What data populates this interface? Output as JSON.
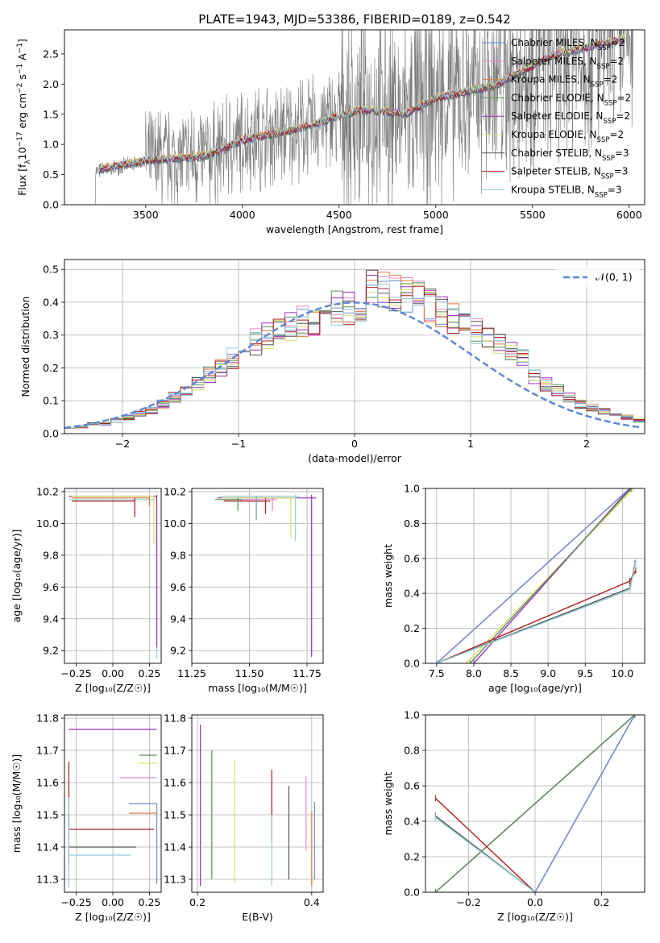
{
  "figure": {
    "title": "PLATE=1943, MJD=53386, FIBERID=0189, z=0.542"
  },
  "series_styles": [
    {
      "name": "Chabrier MILES",
      "nssp": "2",
      "color": "#6a8fd6"
    },
    {
      "name": "Salpeter MILES",
      "nssp": "2",
      "color": "#e58ac9"
    },
    {
      "name": "Kroupa MILES",
      "nssp": "2",
      "color": "#e07b39"
    },
    {
      "name": "Chabrier ELODIE",
      "nssp": "2",
      "color": "#5a8f5a"
    },
    {
      "name": "Salpeter ELODIE",
      "nssp": "2",
      "color": "#a02ec0"
    },
    {
      "name": "Kroupa ELODIE",
      "nssp": "2",
      "color": "#d6e26b"
    },
    {
      "name": "Chabrier STELIB",
      "nssp": "3",
      "color": "#555555"
    },
    {
      "name": "Salpeter STELIB",
      "nssp": "3",
      "color": "#b01c1c"
    },
    {
      "name": "Kroupa STELIB",
      "nssp": "3",
      "color": "#8fd0d6"
    }
  ],
  "chart_data": [
    {
      "id": "spectrum",
      "type": "line",
      "title": "PLATE=1943, MJD=53386, FIBERID=0189, z=0.542",
      "xlabel": "wavelength [Angstrom, rest frame]",
      "ylabel_main": "Flux [f",
      "ylabel_sub": "λ",
      "ylabel_mid": "10",
      "ylabel_sup1": "−17",
      "ylabel_unit": " erg cm",
      "ylabel_sup2": "−2",
      "ylabel_unit2": " s",
      "ylabel_sup3": "−1",
      "ylabel_unit3": " A",
      "ylabel_sup4": "−1",
      "ylabel_end": "]",
      "xlim": [
        3080,
        6080
      ],
      "ylim": [
        0,
        2.9
      ],
      "xticks": [
        3500,
        4000,
        4500,
        5000,
        5500,
        6000
      ],
      "yticks": [
        0.0,
        0.5,
        1.0,
        1.5,
        2.0,
        2.5
      ],
      "data_range": [
        3240,
        6020
      ],
      "model_anchor_x": [
        3240,
        3500,
        3800,
        4000,
        4300,
        4600,
        4850,
        5000,
        5300,
        5600,
        6000
      ],
      "model_anchor_y": [
        0.55,
        0.72,
        0.78,
        1.05,
        1.25,
        1.55,
        1.5,
        1.75,
        1.95,
        2.45,
        2.75
      ],
      "legend_position": "top-right"
    },
    {
      "id": "residual-histogram",
      "type": "histogram",
      "xlabel": "(data-model)/error",
      "ylabel": "Normed distribution",
      "xlim": [
        -2.5,
        2.5
      ],
      "ylim": [
        0,
        0.53
      ],
      "xticks": [
        -2,
        -1,
        0,
        1,
        2
      ],
      "yticks": [
        0.0,
        0.1,
        0.2,
        0.3,
        0.4,
        0.5
      ],
      "bin_width": 0.1,
      "bins_center_values": [
        0.02,
        0.02,
        0.03,
        0.03,
        0.04,
        0.05,
        0.06,
        0.07,
        0.09,
        0.11,
        0.13,
        0.15,
        0.18,
        0.2,
        0.23,
        0.25,
        0.28,
        0.3,
        0.32,
        0.33,
        0.34,
        0.35,
        0.37,
        0.38,
        0.39,
        0.4,
        0.4,
        0.4,
        0.39,
        0.38,
        0.37,
        0.35,
        0.33,
        0.31,
        0.29,
        0.27,
        0.25,
        0.23,
        0.21,
        0.19,
        0.17,
        0.15,
        0.13,
        0.11,
        0.09,
        0.08,
        0.07,
        0.06,
        0.05,
        0.04
      ],
      "gaussian_label": "𝒩(0, 1)",
      "gaussian_color": "#5b86d6",
      "legend_position": "top-right"
    },
    {
      "id": "age-vs-Z",
      "type": "errorbar",
      "xlabel": "Z [log₁₀(Z/Z☉)]",
      "ylabel": "age  [log₁₀(age/yr)]",
      "xlim": [
        -0.33,
        0.33
      ],
      "ylim": [
        9.12,
        10.22
      ],
      "xticks": [
        "-0.25",
        "0.00",
        "0.25"
      ],
      "xtick_vals": [
        -0.25,
        0.0,
        0.25
      ],
      "yticks": [
        9.2,
        9.4,
        9.6,
        9.8,
        10.0,
        10.2
      ],
      "points": [
        {
          "s": 8,
          "x": 0.3,
          "y": 10.15,
          "xerr": [
            0.6,
            0
          ],
          "yerr": [
            1.0,
            0.02
          ]
        },
        {
          "s": 4,
          "x": 0.3,
          "y": 10.17,
          "xerr": [
            0.6,
            0
          ],
          "yerr": [
            0.95,
            0.01
          ]
        },
        {
          "s": 5,
          "x": 0.28,
          "y": 10.17,
          "xerr": [
            0.56,
            0
          ],
          "yerr": [
            0.3,
            0.01
          ]
        },
        {
          "s": 7,
          "x": 0.15,
          "y": 10.14,
          "xerr": [
            0.43,
            0
          ],
          "yerr": [
            0.1,
            0.02
          ]
        },
        {
          "s": 2,
          "x": 0.25,
          "y": 10.16,
          "xerr": [
            0.53,
            0
          ],
          "yerr": [
            0.05,
            0.01
          ]
        }
      ]
    },
    {
      "id": "age-vs-mass",
      "type": "errorbar",
      "xlabel": "mass [log₁₀(M/M☉)]",
      "ylabel": "",
      "xlim": [
        11.25,
        11.82
      ],
      "ylim": [
        9.12,
        10.22
      ],
      "xticks": [
        "11.25",
        "11.50",
        "11.75"
      ],
      "xtick_vals": [
        11.25,
        11.5,
        11.75
      ],
      "yticks": [
        9.2,
        9.4,
        9.6,
        9.8,
        10.0,
        10.2
      ],
      "points": [
        {
          "s": 4,
          "x": 11.77,
          "y": 10.16,
          "xerr": [
            0.41,
            0.02
          ],
          "yerr": [
            1.0,
            0.02
          ]
        },
        {
          "s": 5,
          "x": 11.68,
          "y": 10.16,
          "xerr": [
            0.3,
            0.02
          ],
          "yerr": [
            0.25,
            0.01
          ]
        },
        {
          "s": 8,
          "x": 11.7,
          "y": 10.17,
          "xerr": [
            0.33,
            0.02
          ],
          "yerr": [
            0.28,
            0.01
          ]
        },
        {
          "s": 7,
          "x": 11.57,
          "y": 10.14,
          "xerr": [
            0.18,
            0.02
          ],
          "yerr": [
            0.08,
            0.02
          ]
        },
        {
          "s": 0,
          "x": 11.53,
          "y": 10.15,
          "xerr": [
            0.15,
            0.02
          ],
          "yerr": [
            0.13,
            0.02
          ]
        },
        {
          "s": 1,
          "x": 11.6,
          "y": 10.15,
          "xerr": [
            0.2,
            0.02
          ],
          "yerr": [
            0.07,
            0.01
          ]
        },
        {
          "s": 3,
          "x": 11.45,
          "y": 10.15,
          "xerr": [
            0.1,
            0.02
          ],
          "yerr": [
            0.07,
            0.01
          ]
        }
      ]
    },
    {
      "id": "mass-weight-vs-age",
      "type": "line",
      "xlabel": "age  [log₁₀(age/yr)]",
      "ylabel": "mass weight",
      "xlim": [
        7.35,
        10.3
      ],
      "ylim": [
        0,
        1
      ],
      "xticks": [
        7.5,
        8.0,
        8.5,
        9.0,
        9.5,
        10.0
      ],
      "yticks": [
        0.0,
        0.2,
        0.4,
        0.6,
        0.8,
        1.0
      ],
      "series": [
        {
          "s": 2,
          "x": [
            7.5,
            10.1
          ],
          "y": [
            0.0,
            1.0
          ]
        },
        {
          "s": 1,
          "x": [
            7.5,
            10.1
          ],
          "y": [
            0.0,
            1.0
          ]
        },
        {
          "s": 0,
          "x": [
            7.5,
            10.1
          ],
          "y": [
            0.0,
            1.0
          ]
        },
        {
          "s": 5,
          "x": [
            7.9,
            10.15
          ],
          "y": [
            0.0,
            1.0
          ]
        },
        {
          "s": 4,
          "x": [
            8.0,
            10.1
          ],
          "y": [
            0.0,
            1.0
          ]
        },
        {
          "s": 3,
          "x": [
            7.95,
            10.12
          ],
          "y": [
            0.0,
            1.0
          ]
        },
        {
          "s": 7,
          "x": [
            7.5,
            10.1,
            10.18
          ],
          "y": [
            0.0,
            0.47,
            0.53
          ]
        },
        {
          "s": 6,
          "x": [
            7.5,
            10.1,
            10.17
          ],
          "y": [
            0.0,
            0.43,
            0.57
          ]
        },
        {
          "s": 8,
          "x": [
            7.5,
            10.1,
            10.18
          ],
          "y": [
            0.0,
            0.42,
            0.58
          ]
        }
      ]
    },
    {
      "id": "mass-vs-Z",
      "type": "errorbar",
      "xlabel": "Z [log₁₀(Z/Z☉)]",
      "ylabel": "mass [log₁₀(M/M☉)]",
      "xlim": [
        -0.33,
        0.33
      ],
      "ylim": [
        11.26,
        11.81
      ],
      "xticks": [
        "-0.25",
        "0.00",
        "0.25"
      ],
      "xtick_vals": [
        -0.25,
        0.0,
        0.25
      ],
      "yticks": [
        11.3,
        11.4,
        11.5,
        11.6,
        11.7,
        11.8
      ],
      "points": [
        {
          "s": 4,
          "x": 0.3,
          "y": 11.765,
          "xerr": [
            0.6,
            0
          ],
          "yerr": [
            0.0,
            0.0
          ]
        },
        {
          "s": 3,
          "x": 0.3,
          "y": 11.685,
          "xerr": [
            0.12,
            0
          ],
          "yerr": [
            0,
            0
          ]
        },
        {
          "s": 5,
          "x": 0.3,
          "y": 11.66,
          "xerr": [
            0.12,
            0
          ],
          "yerr": [
            0,
            0
          ]
        },
        {
          "s": 1,
          "x": 0.3,
          "y": 11.615,
          "xerr": [
            0.25,
            0
          ],
          "yerr": [
            0,
            0
          ]
        },
        {
          "s": 0,
          "x": 0.3,
          "y": 11.535,
          "xerr": [
            0.19,
            0
          ],
          "yerr": [
            0.25,
            0.0
          ]
        },
        {
          "s": 2,
          "x": 0.3,
          "y": 11.505,
          "xerr": [
            0.19,
            0
          ],
          "yerr": [
            0,
            0
          ]
        },
        {
          "s": 7,
          "x": -0.3,
          "y": 11.455,
          "xerr": [
            0,
            0.58
          ],
          "yerr": [
            0.0,
            0.21
          ]
        },
        {
          "s": 6,
          "x": -0.3,
          "y": 11.4,
          "xerr": [
            0,
            0.46
          ],
          "yerr": [
            0.05,
            0.1
          ]
        },
        {
          "s": 8,
          "x": -0.3,
          "y": 11.375,
          "xerr": [
            0,
            0.42
          ],
          "yerr": [
            0.1,
            0.18
          ]
        }
      ]
    },
    {
      "id": "mass-vs-EBV",
      "type": "errorbar",
      "xlabel": "E(B-V)",
      "ylabel": "",
      "xlim": [
        0.19,
        0.42
      ],
      "ylim": [
        11.26,
        11.81
      ],
      "xticks": [
        "0.2",
        "0.4"
      ],
      "xtick_vals": [
        0.2,
        0.4
      ],
      "yticks": [
        11.3,
        11.4,
        11.5,
        11.6,
        11.7,
        11.8
      ],
      "points": [
        {
          "s": 4,
          "x": 0.205,
          "y": 11.55,
          "xerr": [
            0,
            0
          ],
          "yerr": [
            0.27,
            0.23
          ]
        },
        {
          "s": 3,
          "x": 0.225,
          "y": 11.5,
          "xerr": [
            0,
            0
          ],
          "yerr": [
            0.2,
            0.2
          ]
        },
        {
          "s": 5,
          "x": 0.265,
          "y": 11.48,
          "xerr": [
            0,
            0
          ],
          "yerr": [
            0.19,
            0.19
          ]
        },
        {
          "s": 7,
          "x": 0.33,
          "y": 11.52,
          "xerr": [
            0,
            0
          ],
          "yerr": [
            0.1,
            0.12
          ]
        },
        {
          "s": 8,
          "x": 0.33,
          "y": 11.4,
          "xerr": [
            0,
            0
          ],
          "yerr": [
            0.12,
            0.1
          ]
        },
        {
          "s": 6,
          "x": 0.36,
          "y": 11.44,
          "xerr": [
            0,
            0
          ],
          "yerr": [
            0.14,
            0.15
          ]
        },
        {
          "s": 1,
          "x": 0.39,
          "y": 11.5,
          "xerr": [
            0,
            0
          ],
          "yerr": [
            0.11,
            0.12
          ]
        },
        {
          "s": 2,
          "x": 0.4,
          "y": 11.38,
          "xerr": [
            0,
            0
          ],
          "yerr": [
            0.1,
            0.13
          ]
        },
        {
          "s": 0,
          "x": 0.405,
          "y": 11.4,
          "xerr": [
            0,
            0
          ],
          "yerr": [
            0.1,
            0.14
          ]
        }
      ]
    },
    {
      "id": "mass-weight-vs-Z",
      "type": "line",
      "xlabel": "Z [log₁₀(Z/Z☉)]",
      "ylabel": "mass weight",
      "xlim": [
        -0.33,
        0.33
      ],
      "ylim": [
        0,
        1
      ],
      "xticks": [
        "−0.2",
        "0.0",
        "0.2"
      ],
      "xtick_vals": [
        -0.2,
        0.0,
        0.2
      ],
      "yticks": [
        0.0,
        0.2,
        0.4,
        0.6,
        0.8,
        1.0
      ],
      "series": [
        {
          "s": 2,
          "x": [
            0.0,
            0.3
          ],
          "y": [
            0.0,
            1.0
          ]
        },
        {
          "s": 1,
          "x": [
            0.0,
            0.3
          ],
          "y": [
            0.0,
            1.0
          ]
        },
        {
          "s": 0,
          "x": [
            0.0,
            0.3
          ],
          "y": [
            0.0,
            1.0
          ]
        },
        {
          "s": 5,
          "x": [
            -0.3,
            0.3
          ],
          "y": [
            0.0,
            1.0
          ]
        },
        {
          "s": 4,
          "x": [
            -0.3,
            0.3
          ],
          "y": [
            0.0,
            1.0
          ]
        },
        {
          "s": 3,
          "x": [
            -0.3,
            0.3
          ],
          "y": [
            0.0,
            1.0
          ]
        },
        {
          "s": 7,
          "x": [
            -0.3,
            0.0
          ],
          "y": [
            0.53,
            0.0
          ]
        },
        {
          "s": 6,
          "x": [
            -0.3,
            0.0
          ],
          "y": [
            0.43,
            0.0
          ]
        },
        {
          "s": 8,
          "x": [
            -0.3,
            0.0
          ],
          "y": [
            0.42,
            0.0
          ]
        }
      ]
    }
  ]
}
